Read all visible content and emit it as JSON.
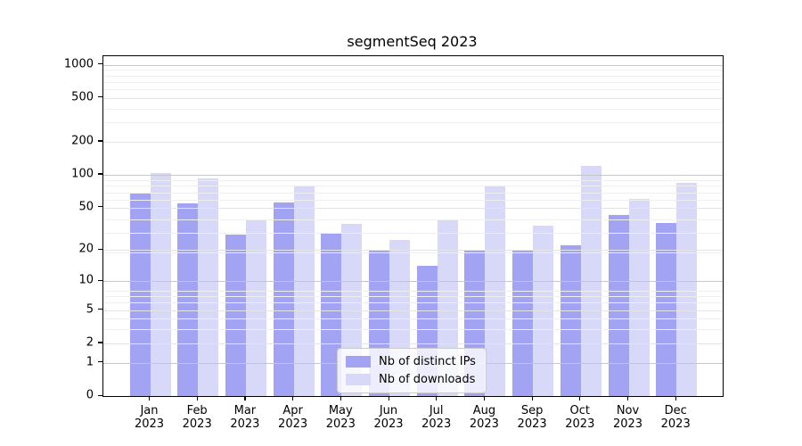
{
  "title": "segmentSeq 2023",
  "chart_data": {
    "type": "bar",
    "title": "segmentSeq 2023",
    "categories": [
      "Jan 2023",
      "Feb 2023",
      "Mar 2023",
      "Apr 2023",
      "May 2023",
      "Jun 2023",
      "Jul 2023",
      "Aug 2023",
      "Sep 2023",
      "Oct 2023",
      "Nov 2023",
      "Dec 2023"
    ],
    "series": [
      {
        "name": "Nb of distinct IPs",
        "color": "#a3a3f3",
        "values": [
          67,
          55,
          28,
          56,
          29,
          20,
          14,
          20,
          20,
          22,
          43,
          36
        ]
      },
      {
        "name": "Nb of downloads",
        "color": "#d8d8f8",
        "values": [
          104,
          93,
          38,
          78,
          35,
          25,
          38,
          80,
          34,
          120,
          60,
          85
        ]
      }
    ],
    "yscale": "log10(value+1)",
    "y_ticks": [
      0,
      1,
      2,
      5,
      10,
      20,
      50,
      100,
      200,
      500,
      1000
    ],
    "ylim": [
      0,
      1200
    ],
    "grid": true,
    "legend_position": "lower center",
    "axis_color": "#000000",
    "grid_color_decade": "#c6c6c6",
    "grid_color_major": "#e4e4e4",
    "grid_color_minor": "#efefef"
  }
}
